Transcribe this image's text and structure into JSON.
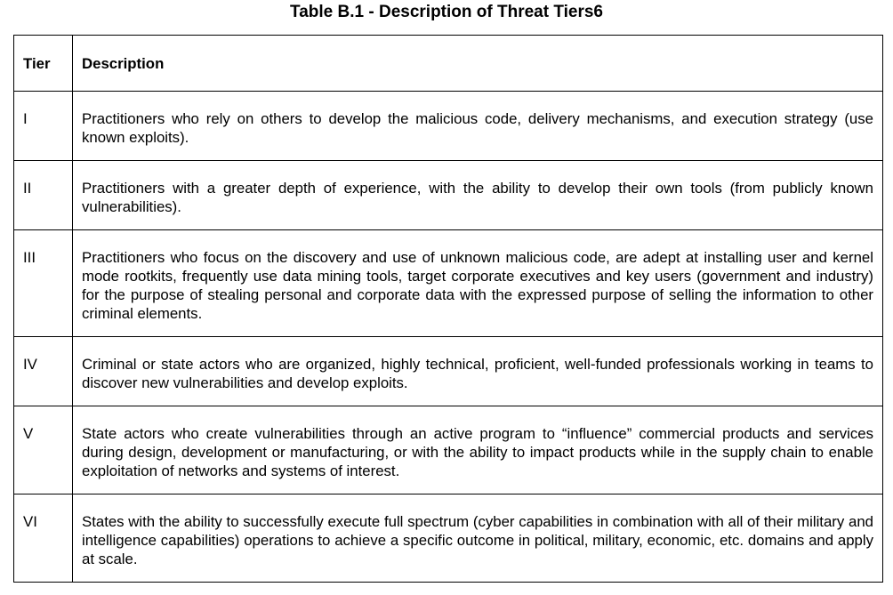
{
  "title": "Table B.1 - Description of Threat Tiers6",
  "table": {
    "headers": {
      "tier": "Tier",
      "description": "Description"
    },
    "rows": [
      {
        "tier": "I",
        "description": "Practitioners who rely on others to develop the malicious code, delivery mechanisms, and execution strategy (use known exploits)."
      },
      {
        "tier": "II",
        "description": "Practitioners with a greater depth of experience, with the ability to develop their own tools (from publicly known vulnerabilities)."
      },
      {
        "tier": "III",
        "description": "Practitioners who focus on the discovery and use of unknown malicious code, are adept at installing user and kernel mode rootkits, frequently use data mining tools, target corporate executives and key users (government and industry) for the purpose of stealing personal and corporate data with the expressed purpose of selling the information to other criminal elements."
      },
      {
        "tier": "IV",
        "description": "Criminal or state actors who are organized, highly technical, proficient, well-funded professionals working in teams to discover new vulnerabilities and develop exploits."
      },
      {
        "tier": "V",
        "description": "State actors who create vulnerabilities through an active program to “influence” commercial products and services during design, development or manufacturing, or with the ability to impact products while in the supply chain to enable exploitation of networks and systems of interest."
      },
      {
        "tier": "VI",
        "description": "States with the ability to successfully execute full spectrum (cyber capabilities in combination with all of their military and intelligence capabilities) operations to achieve a specific outcome in political, military, economic, etc. domains and apply at scale."
      }
    ]
  }
}
